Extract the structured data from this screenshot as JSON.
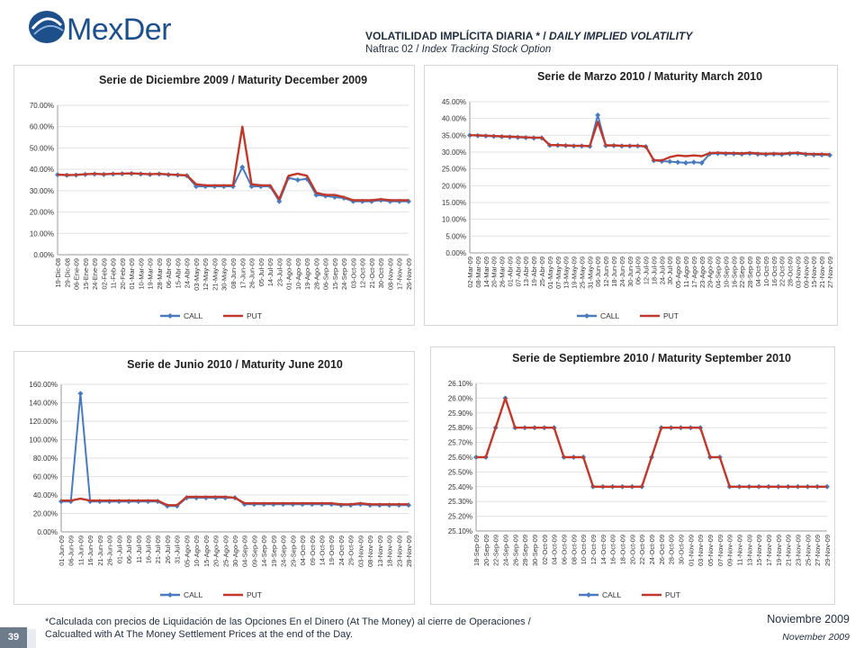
{
  "header": {
    "logo_text": "MexDer",
    "title_es": "VOLATILIDAD IMPLÍCITA DIARIA * / ",
    "title_en": "DAILY IMPLIED VOLATILITY",
    "subtitle_es": "Naftrac 02 / ",
    "subtitle_en": "Index Tracking Stock Option"
  },
  "colors": {
    "call": "#4a7bbf",
    "put": "#c0392b",
    "logo": "#1d4f8b"
  },
  "footer": {
    "note_line1": "*Calculada con precios de Liquidación de las Opciones En el Dinero (At The Money) al cierre de Operaciones /",
    "note_line2": "Calcualted with At The Money Settlement Prices at the end of the Day.",
    "date_es": "Noviembre 2009",
    "date_en": "November  2009",
    "page_number": "39"
  },
  "chart_data": [
    {
      "type": "line",
      "title": "Serie de Diciembre 2009 / Maturity December 2009",
      "y_tick_labels": [
        "0.00%",
        "10.00%",
        "20.00%",
        "30.00%",
        "40.00%",
        "50.00%",
        "60.00%",
        "70.00%"
      ],
      "ylim": [
        0,
        70
      ],
      "x_tick_labels": [
        "19-Dic-08",
        "29-Dic-08",
        "06-Ene-09",
        "15-Ene-09",
        "24-Ene-09",
        "02-Feb-09",
        "11-Feb-09",
        "20-Feb-09",
        "01-Mar-09",
        "10-Mar-09",
        "19-Mar-09",
        "28-Mar-09",
        "06-Abr-09",
        "15-Abr-09",
        "24-Abr-09",
        "03-May-09",
        "12-May-09",
        "21-May-09",
        "30-May-09",
        "08-Jun-09",
        "17-Jun-09",
        "26-Jun-09",
        "05-Jul-09",
        "14-Jul-09",
        "23-Jul-09",
        "01-Ago-09",
        "10-Ago-09",
        "19-Ago-09",
        "28-Ago-09",
        "06-Sep-09",
        "15-Sep-09",
        "24-Sep-09",
        "03-Oct-09",
        "12-Oct-09",
        "21-Oct-09",
        "30-Oct-09",
        "08-Nov-09",
        "17-Nov-09",
        "26-Nov-09"
      ],
      "series": [
        {
          "name": "CALL",
          "values": [
            37.5,
            37.2,
            37.3,
            37.6,
            37.8,
            37.6,
            37.8,
            37.9,
            38.0,
            37.8,
            37.6,
            37.8,
            37.5,
            37.3,
            37.0,
            32.0,
            32.0,
            32.0,
            32.0,
            32.0,
            41.0,
            32.0,
            32.0,
            32.0,
            25.0,
            36.0,
            35.0,
            35.5,
            28.0,
            27.5,
            27.0,
            26.5,
            25.0,
            25.0,
            25.0,
            25.5,
            25.0,
            25.0,
            25.0
          ]
        },
        {
          "name": "PUT",
          "values": [
            37.5,
            37.3,
            37.4,
            37.7,
            37.9,
            37.7,
            37.9,
            38.0,
            38.1,
            37.9,
            37.7,
            37.9,
            37.6,
            37.4,
            37.2,
            33.0,
            32.5,
            32.5,
            32.5,
            32.5,
            60.0,
            33.0,
            32.5,
            32.5,
            26.0,
            37.0,
            38.0,
            37.0,
            29.0,
            28.0,
            28.0,
            27.0,
            25.5,
            25.5,
            25.5,
            26.0,
            25.5,
            25.5,
            25.5
          ]
        }
      ],
      "legend": "bottom"
    },
    {
      "type": "line",
      "title": "Serie de Marzo 2010 / Maturity March 2010",
      "y_tick_labels": [
        "0.00%",
        "5.00%",
        "10.00%",
        "15.00%",
        "20.00%",
        "25.00%",
        "30.00%",
        "35.00%",
        "40.00%",
        "45.00%"
      ],
      "ylim": [
        0,
        45
      ],
      "x_tick_labels": [
        "02-Mar-09",
        "08-Mar-09",
        "14-Mar-09",
        "20-Mar-09",
        "26-Mar-09",
        "01-Abr-09",
        "07-Abr-09",
        "13-Abr-09",
        "19-Abr-09",
        "25-Abr-09",
        "01-May-09",
        "07-May-09",
        "13-May-09",
        "19-May-09",
        "25-May-09",
        "31-May-09",
        "06-Jun-09",
        "12-Jun-09",
        "18-Jun-09",
        "24-Jun-09",
        "30-Jun-09",
        "06-Jul-09",
        "12-Jul-09",
        "18-Jul-09",
        "24-Jul-09",
        "30-Jul-09",
        "05-Ago-09",
        "11-Ago-09",
        "17-Ago-09",
        "23-Ago-09",
        "29-Ago-09",
        "04-Sep-09",
        "10-Sep-09",
        "16-Sep-09",
        "22-Sep-09",
        "28-Sep-09",
        "04-Oct-09",
        "10-Oct-09",
        "16-Oct-09",
        "22-Oct-09",
        "28-Oct-09",
        "03-Nov-09",
        "09-Nov-09",
        "15-Nov-09",
        "21-Nov-09",
        "27-Nov-09"
      ],
      "series": [
        {
          "name": "CALL",
          "values": [
            35.0,
            34.9,
            34.8,
            34.7,
            34.6,
            34.5,
            34.4,
            34.3,
            34.2,
            34.2,
            32.0,
            32.0,
            31.9,
            31.8,
            31.8,
            31.7,
            41.0,
            31.9,
            31.9,
            31.8,
            31.8,
            31.8,
            31.6,
            27.5,
            27.3,
            27.2,
            27.0,
            26.8,
            27.0,
            26.8,
            29.5,
            29.6,
            29.5,
            29.5,
            29.4,
            29.6,
            29.4,
            29.3,
            29.4,
            29.3,
            29.5,
            29.6,
            29.3,
            29.2,
            29.2,
            29.1
          ]
        },
        {
          "name": "PUT",
          "values": [
            35.0,
            35.0,
            34.9,
            34.8,
            34.7,
            34.6,
            34.5,
            34.4,
            34.3,
            34.3,
            32.1,
            32.1,
            32.0,
            31.9,
            31.9,
            31.8,
            39.0,
            32.0,
            32.0,
            31.9,
            31.9,
            31.9,
            31.7,
            27.6,
            27.5,
            28.5,
            29.0,
            28.8,
            29.0,
            28.8,
            29.7,
            29.8,
            29.7,
            29.7,
            29.6,
            29.8,
            29.6,
            29.5,
            29.6,
            29.5,
            29.7,
            29.8,
            29.5,
            29.4,
            29.4,
            29.3
          ]
        }
      ],
      "legend": "bottom"
    },
    {
      "type": "line",
      "title": "Serie de Junio 2010 / Maturity June 2010",
      "y_tick_labels": [
        "0.00%",
        "20.00%",
        "40.00%",
        "60.00%",
        "80.00%",
        "100.00%",
        "120.00%",
        "140.00%",
        "160.00%"
      ],
      "ylim": [
        0,
        160
      ],
      "x_tick_labels": [
        "01-Jun-09",
        "06-Jun-09",
        "11-Jun-09",
        "16-Jun-09",
        "21-Jun-09",
        "26-Jun-09",
        "01-Jul-09",
        "06-Jul-09",
        "11-Jul-09",
        "16-Jul-09",
        "21-Jul-09",
        "26-Jul-09",
        "31-Jul-09",
        "05-Ago-09",
        "10-Ago-09",
        "15-Ago-09",
        "20-Ago-09",
        "25-Ago-09",
        "30-Ago-09",
        "04-Sep-09",
        "09-Sep-09",
        "14-Sep-09",
        "19-Sep-09",
        "24-Sep-09",
        "29-Sep-09",
        "04-Oct-09",
        "09-Oct-09",
        "14-Oct-09",
        "19-Oct-09",
        "24-Oct-09",
        "29-Oct-09",
        "03-Nov-09",
        "08-Nov-09",
        "13-Nov-09",
        "18-Nov-09",
        "23-Nov-09",
        "28-Nov-09"
      ],
      "series": [
        {
          "name": "CALL",
          "values": [
            33,
            33,
            150,
            33,
            33,
            33,
            33,
            33,
            33,
            33,
            33,
            28,
            28,
            37,
            37,
            37,
            37,
            37,
            37,
            30,
            30,
            30,
            30,
            30,
            30,
            30,
            30,
            30,
            30,
            29,
            29,
            30,
            29,
            29,
            29,
            29,
            29
          ]
        },
        {
          "name": "PUT",
          "values": [
            34,
            34,
            36,
            34,
            34,
            34,
            34,
            34,
            34,
            34,
            34,
            29,
            29,
            38,
            38,
            38,
            38,
            38,
            37,
            31,
            31,
            31,
            31,
            31,
            31,
            31,
            31,
            31,
            31,
            30,
            30,
            31,
            30,
            30,
            30,
            30,
            30
          ]
        }
      ],
      "legend": "bottom"
    },
    {
      "type": "line",
      "title": "Serie de Septiembre 2010 / Maturity September 2010",
      "y_tick_labels": [
        "25.10%",
        "25.20%",
        "25.30%",
        "25.40%",
        "25.50%",
        "25.60%",
        "25.70%",
        "25.80%",
        "25.90%",
        "26.00%",
        "26.10%"
      ],
      "ylim": [
        25.1,
        26.1
      ],
      "x_tick_labels": [
        "18-Sep-09",
        "20-Sep-09",
        "22-Sep-09",
        "24-Sep-09",
        "26-Sep-09",
        "28-Sep-09",
        "30-Sep-09",
        "02-Oct-09",
        "04-Oct-09",
        "06-Oct-09",
        "08-Oct-09",
        "10-Oct-09",
        "12-Oct-09",
        "14-Oct-09",
        "16-Oct-09",
        "18-Oct-09",
        "20-Oct-09",
        "22-Oct-09",
        "24-Oct-09",
        "26-Oct-09",
        "28-Oct-09",
        "30-Oct-09",
        "01-Nov-09",
        "03-Nov-09",
        "05-Nov-09",
        "07-Nov-09",
        "09-Nov-09",
        "11-Nov-09",
        "13-Nov-09",
        "15-Nov-09",
        "17-Nov-09",
        "19-Nov-09",
        "21-Nov-09",
        "23-Nov-09",
        "25-Nov-09",
        "27-Nov-09",
        "29-Nov-09"
      ],
      "series": [
        {
          "name": "CALL",
          "values": [
            25.6,
            25.6,
            25.8,
            26.0,
            25.8,
            25.8,
            25.8,
            25.8,
            25.8,
            25.6,
            25.6,
            25.6,
            25.4,
            25.4,
            25.4,
            25.4,
            25.4,
            25.4,
            25.6,
            25.8,
            25.8,
            25.8,
            25.8,
            25.8,
            25.6,
            25.6,
            25.4,
            25.4,
            25.4,
            25.4,
            25.4,
            25.4,
            25.4,
            25.4,
            25.4,
            25.4,
            25.4
          ]
        },
        {
          "name": "PUT",
          "values": [
            25.6,
            25.6,
            25.8,
            26.0,
            25.8,
            25.8,
            25.8,
            25.8,
            25.8,
            25.6,
            25.6,
            25.6,
            25.4,
            25.4,
            25.4,
            25.4,
            25.4,
            25.4,
            25.6,
            25.8,
            25.8,
            25.8,
            25.8,
            25.8,
            25.6,
            25.6,
            25.4,
            25.4,
            25.4,
            25.4,
            25.4,
            25.4,
            25.4,
            25.4,
            25.4,
            25.4,
            25.4
          ]
        }
      ],
      "legend": "bottom"
    }
  ]
}
